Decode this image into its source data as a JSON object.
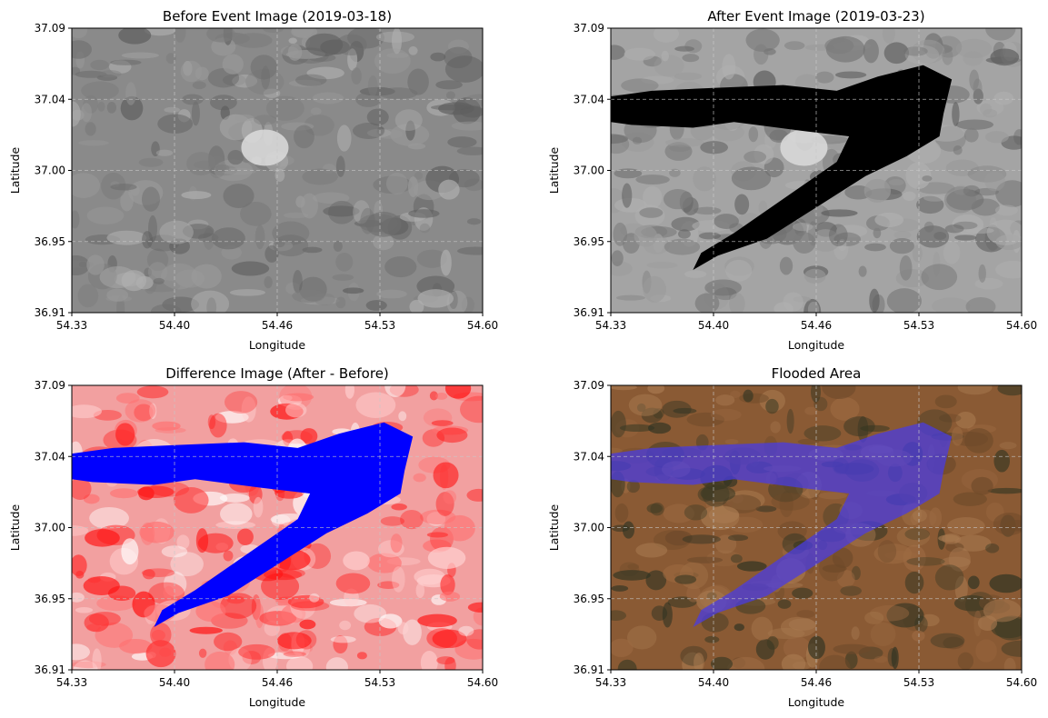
{
  "figure": {
    "panels": [
      {
        "id": "before",
        "title": "Before Event Image (2019-03-18)",
        "xlabel": "Longitude",
        "ylabel": "Latitude",
        "colormap": "gray",
        "background": "#8a8a8a",
        "flood_color": null
      },
      {
        "id": "after",
        "title": "After Event Image (2019-03-23)",
        "xlabel": "Longitude",
        "ylabel": "Latitude",
        "colormap": "gray",
        "background": "#a4a4a4",
        "flood_color": "#000000"
      },
      {
        "id": "difference",
        "title": "Difference Image (After - Before)",
        "xlabel": "Longitude",
        "ylabel": "Latitude",
        "colormap": "bwr",
        "background": "#f2a0a0",
        "flood_color": "#0000ff"
      },
      {
        "id": "flooded",
        "title": "Flooded Area",
        "xlabel": "Longitude",
        "ylabel": "Latitude",
        "colormap": "rgb",
        "background": "#8a5a34",
        "flood_color": "#4a3ce0"
      }
    ]
  },
  "chart_data": [
    {
      "type": "heatmap",
      "title": "Before Event Image (2019-03-18)",
      "xlabel": "Longitude",
      "ylabel": "Latitude",
      "xlim": [
        54.33,
        54.6
      ],
      "ylim": [
        36.91,
        37.09
      ],
      "xticks": [
        "54.33",
        "54.40",
        "54.46",
        "54.53",
        "54.60"
      ],
      "yticks": [
        "37.09",
        "37.04",
        "37.00",
        "36.95",
        "36.91"
      ],
      "grid": true
    },
    {
      "type": "heatmap",
      "title": "After Event Image (2019-03-23)",
      "xlabel": "Longitude",
      "ylabel": "Latitude",
      "xlim": [
        54.33,
        54.6
      ],
      "ylim": [
        36.91,
        37.09
      ],
      "xticks": [
        "54.33",
        "54.40",
        "54.46",
        "54.53",
        "54.60"
      ],
      "yticks": [
        "37.09",
        "37.04",
        "37.00",
        "36.95",
        "36.91"
      ],
      "grid": true
    },
    {
      "type": "heatmap",
      "title": "Difference Image (After - Before)",
      "xlabel": "Longitude",
      "ylabel": "Latitude",
      "xlim": [
        54.33,
        54.6
      ],
      "ylim": [
        36.91,
        37.09
      ],
      "xticks": [
        "54.33",
        "54.40",
        "54.46",
        "54.53",
        "54.60"
      ],
      "yticks": [
        "37.09",
        "37.04",
        "37.00",
        "36.95",
        "36.91"
      ],
      "grid": true
    },
    {
      "type": "heatmap",
      "title": "Flooded Area",
      "xlabel": "Longitude",
      "ylabel": "Latitude",
      "xlim": [
        54.33,
        54.6
      ],
      "ylim": [
        36.91,
        37.09
      ],
      "xticks": [
        "54.33",
        "54.40",
        "54.46",
        "54.53",
        "54.60"
      ],
      "yticks": [
        "37.09",
        "37.04",
        "37.00",
        "36.95",
        "36.91"
      ],
      "grid": true
    }
  ]
}
